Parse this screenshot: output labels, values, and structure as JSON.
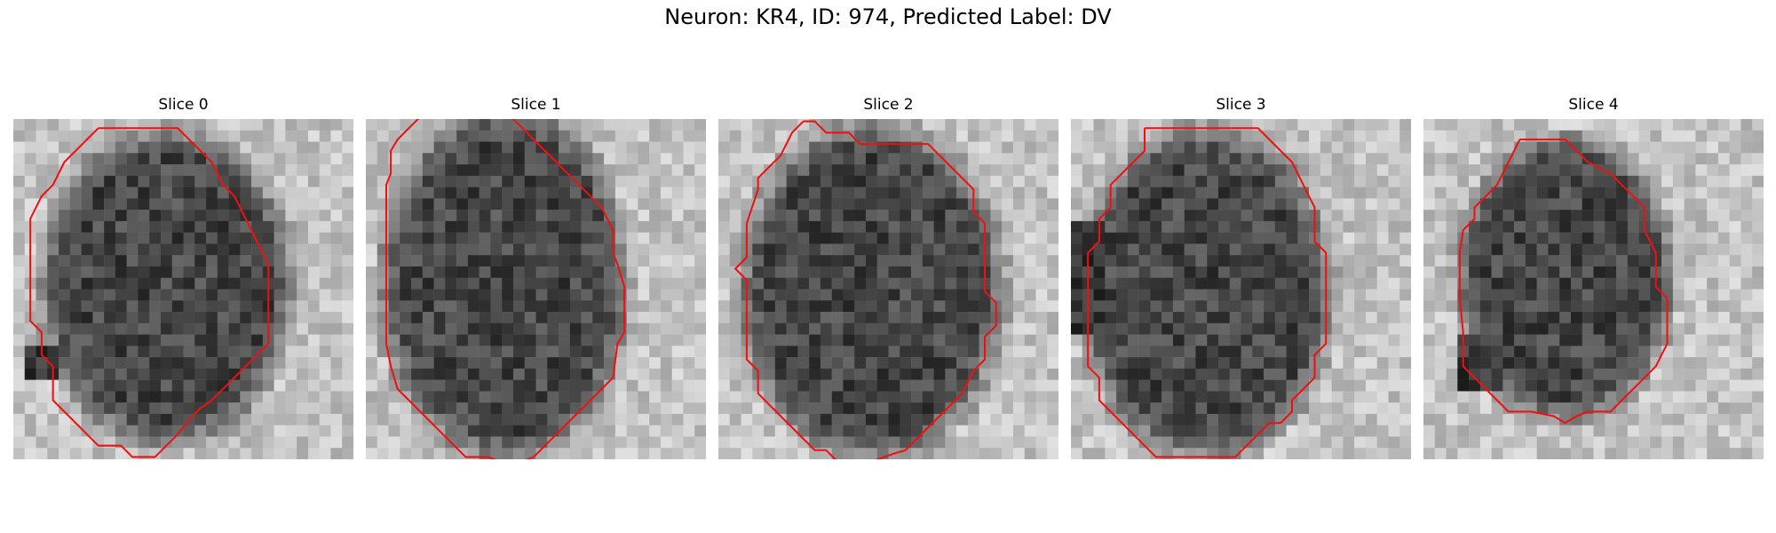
{
  "figure": {
    "title": "Neuron: KR4, ID: 974, Predicted Label: DV",
    "colors": {
      "contour": "#ee1111",
      "background": "#ffffff"
    },
    "panels": [
      {
        "title": "Slice 0",
        "contour": [
          [
            7.5,
            0.8
          ],
          [
            14.5,
            0.8
          ],
          [
            15.5,
            1.8
          ],
          [
            16.5,
            2.8
          ],
          [
            17.5,
            3.8
          ],
          [
            18.5,
            5.8
          ],
          [
            19.5,
            6.8
          ],
          [
            20.5,
            8.8
          ],
          [
            21.5,
            10.8
          ],
          [
            22.5,
            12.8
          ],
          [
            22.5,
            15.8
          ],
          [
            22.5,
            19.8
          ],
          [
            21.5,
            20.8
          ],
          [
            20.5,
            21.8
          ],
          [
            19.5,
            22.8
          ],
          [
            18.5,
            23.8
          ],
          [
            17.5,
            24.8
          ],
          [
            16.5,
            25.5
          ],
          [
            15.5,
            26.5
          ],
          [
            14.5,
            27.8
          ],
          [
            13.5,
            28.8
          ],
          [
            12.5,
            29.8
          ],
          [
            10.5,
            29.8
          ],
          [
            9.5,
            28.8
          ],
          [
            7.5,
            28.8
          ],
          [
            6.5,
            27.8
          ],
          [
            5.5,
            26.8
          ],
          [
            4.5,
            25.8
          ],
          [
            3.5,
            24.8
          ],
          [
            3.5,
            21.8
          ],
          [
            2.5,
            20.8
          ],
          [
            2.5,
            18.8
          ],
          [
            1.5,
            17.8
          ],
          [
            1.5,
            14.8
          ],
          [
            1.5,
            11.8
          ],
          [
            1.5,
            8.8
          ],
          [
            2.5,
            6.8
          ],
          [
            3.5,
            5.8
          ],
          [
            4.5,
            3.8
          ],
          [
            5.5,
            2.8
          ],
          [
            6.5,
            1.8
          ],
          [
            7.5,
            0.8
          ]
        ]
      },
      {
        "title": "Slice 1",
        "contour": [
          [
            6.8,
            -1.2
          ],
          [
            5.8,
            -0.2
          ],
          [
            4.8,
            -0.2
          ],
          [
            3.8,
            0.8
          ],
          [
            2.8,
            1.8
          ],
          [
            2.2,
            2.8
          ],
          [
            2.2,
            4.8
          ],
          [
            1.8,
            5.8
          ],
          [
            1.8,
            10.8
          ],
          [
            1.8,
            15.8
          ],
          [
            1.8,
            19.8
          ],
          [
            2.2,
            21.8
          ],
          [
            2.8,
            23.8
          ],
          [
            3.8,
            24.8
          ],
          [
            4.8,
            25.8
          ],
          [
            5.8,
            26.8
          ],
          [
            6.8,
            27.8
          ],
          [
            7.8,
            28.8
          ],
          [
            8.8,
            29.8
          ],
          [
            10.8,
            29.8
          ],
          [
            11.8,
            30.2
          ],
          [
            10.8,
            30.2
          ],
          [
            13.8,
            30.2
          ],
          [
            14.8,
            29.8
          ],
          [
            15.8,
            28.8
          ],
          [
            16.8,
            27.8
          ],
          [
            17.8,
            26.8
          ],
          [
            18.8,
            25.8
          ],
          [
            19.8,
            24.8
          ],
          [
            20.8,
            23.8
          ],
          [
            21.8,
            22.8
          ],
          [
            22.2,
            19.8
          ],
          [
            22.8,
            18.8
          ],
          [
            22.8,
            14.8
          ],
          [
            22.2,
            12.8
          ],
          [
            21.8,
            11.8
          ],
          [
            21.8,
            9.8
          ],
          [
            20.8,
            7.8
          ],
          [
            19.8,
            6.8
          ],
          [
            18.8,
            5.8
          ],
          [
            17.8,
            4.8
          ],
          [
            16.8,
            3.8
          ],
          [
            15.8,
            2.8
          ],
          [
            14.8,
            1.8
          ],
          [
            13.8,
            0.8
          ],
          [
            12.8,
            -0.2
          ],
          [
            12.2,
            -1.2
          ]
        ]
      },
      {
        "title": "Slice 2",
        "contour": [
          [
            7.5,
            0.2
          ],
          [
            8.5,
            0.2
          ],
          [
            9.5,
            1.2
          ],
          [
            11.5,
            1.2
          ],
          [
            12.5,
            2.2
          ],
          [
            18.5,
            2.2
          ],
          [
            19.5,
            3.2
          ],
          [
            20.5,
            4.2
          ],
          [
            21.5,
            5.2
          ],
          [
            22.5,
            6.2
          ],
          [
            22.5,
            8.2
          ],
          [
            23.5,
            9.2
          ],
          [
            23.5,
            12.2
          ],
          [
            23.5,
            15.2
          ],
          [
            24.5,
            16.2
          ],
          [
            24.5,
            18.2
          ],
          [
            23.5,
            19.2
          ],
          [
            23.5,
            21.2
          ],
          [
            22.5,
            22.2
          ],
          [
            21.5,
            24.2
          ],
          [
            20.5,
            25.2
          ],
          [
            19.5,
            26.2
          ],
          [
            18.5,
            27.2
          ],
          [
            17.5,
            28.2
          ],
          [
            16.5,
            29.2
          ],
          [
            15.5,
            29.5
          ],
          [
            13.5,
            30.2
          ],
          [
            10.5,
            30.2
          ],
          [
            9.5,
            29.2
          ],
          [
            8.5,
            29.2
          ],
          [
            7.5,
            28.2
          ],
          [
            6.5,
            27.2
          ],
          [
            5.5,
            26.2
          ],
          [
            4.5,
            25.2
          ],
          [
            3.5,
            24.2
          ],
          [
            3.5,
            22.2
          ],
          [
            2.5,
            21.2
          ],
          [
            2.5,
            17.2
          ],
          [
            2.5,
            14.2
          ],
          [
            1.5,
            13.2
          ],
          [
            2.5,
            12.2
          ],
          [
            2.5,
            9.2
          ],
          [
            3.5,
            6.2
          ],
          [
            3.5,
            5.2
          ],
          [
            4.5,
            4.2
          ],
          [
            5.5,
            3.2
          ],
          [
            6.5,
            1.2
          ],
          [
            7.5,
            0.2
          ]
        ]
      },
      {
        "title": "Slice 3",
        "contour": [
          [
            6.5,
            0.8
          ],
          [
            16.5,
            0.8
          ],
          [
            17.5,
            1.8
          ],
          [
            18.5,
            2.8
          ],
          [
            19.5,
            3.8
          ],
          [
            20.5,
            5.8
          ],
          [
            21.5,
            7.8
          ],
          [
            21.5,
            10.8
          ],
          [
            22.5,
            11.8
          ],
          [
            22.5,
            15.8
          ],
          [
            22.5,
            19.8
          ],
          [
            21.5,
            20.8
          ],
          [
            21.5,
            22.8
          ],
          [
            20.5,
            23.8
          ],
          [
            19.5,
            24.8
          ],
          [
            19.5,
            25.8
          ],
          [
            18.5,
            26.8
          ],
          [
            17.5,
            26.8
          ],
          [
            16.5,
            27.8
          ],
          [
            15.5,
            28.8
          ],
          [
            14.5,
            29.8
          ],
          [
            10.5,
            29.8
          ],
          [
            7.5,
            29.8
          ],
          [
            6.5,
            28.8
          ],
          [
            5.5,
            27.8
          ],
          [
            4.5,
            26.8
          ],
          [
            3.5,
            25.8
          ],
          [
            2.5,
            24.8
          ],
          [
            2.5,
            22.8
          ],
          [
            1.5,
            21.8
          ],
          [
            1.5,
            18.8
          ],
          [
            1.5,
            14.8
          ],
          [
            1.5,
            11.8
          ],
          [
            2.5,
            10.8
          ],
          [
            2.5,
            8.8
          ],
          [
            3.5,
            7.8
          ],
          [
            3.5,
            5.8
          ],
          [
            4.5,
            4.8
          ],
          [
            5.5,
            3.8
          ],
          [
            6.5,
            2.8
          ],
          [
            6.5,
            0.8
          ]
        ]
      },
      {
        "title": "Slice 4",
        "contour": [
          [
            8.5,
            1.8
          ],
          [
            12.5,
            1.8
          ],
          [
            13.5,
            2.8
          ],
          [
            14.5,
            3.8
          ],
          [
            16.5,
            4.8
          ],
          [
            17.5,
            5.8
          ],
          [
            18.5,
            6.8
          ],
          [
            19.5,
            7.8
          ],
          [
            19.5,
            9.8
          ],
          [
            20.5,
            11.8
          ],
          [
            20.5,
            14.8
          ],
          [
            21.5,
            15.8
          ],
          [
            21.5,
            19.8
          ],
          [
            20.5,
            21.8
          ],
          [
            19.5,
            22.8
          ],
          [
            18.5,
            23.8
          ],
          [
            17.5,
            24.8
          ],
          [
            16.5,
            25.8
          ],
          [
            14.5,
            25.8
          ],
          [
            13.5,
            26.2
          ],
          [
            12.5,
            26.8
          ],
          [
            11.5,
            26.2
          ],
          [
            9.5,
            25.8
          ],
          [
            8.5,
            25.8
          ],
          [
            7.5,
            25.8
          ],
          [
            6.5,
            24.8
          ],
          [
            5.5,
            23.8
          ],
          [
            4.5,
            22.8
          ],
          [
            3.5,
            21.8
          ],
          [
            3.5,
            18.8
          ],
          [
            3.2,
            15.8
          ],
          [
            3.2,
            11.8
          ],
          [
            3.5,
            9.8
          ],
          [
            4.5,
            8.8
          ],
          [
            4.5,
            7.8
          ],
          [
            5.5,
            6.8
          ],
          [
            6.5,
            5.8
          ],
          [
            7.5,
            3.8
          ],
          [
            8.5,
            1.8
          ]
        ]
      }
    ]
  }
}
